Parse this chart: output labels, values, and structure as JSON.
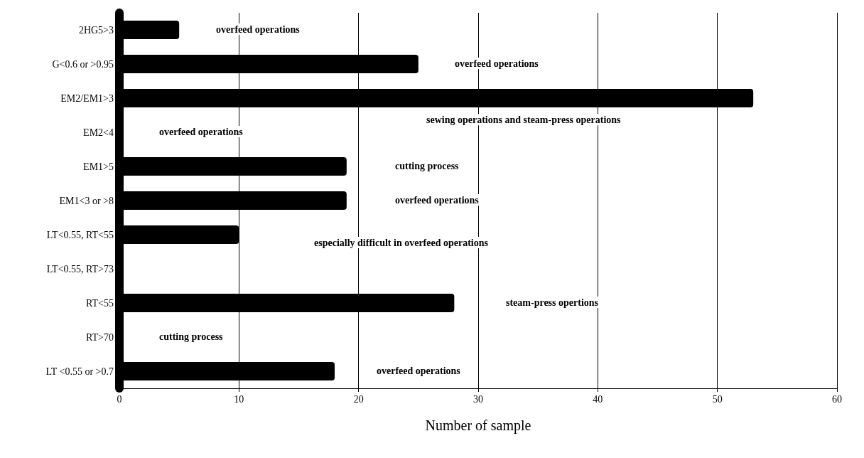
{
  "chart_data": {
    "type": "bar",
    "orientation": "horizontal",
    "xlabel": "Number of sample",
    "categories": [
      "2HG5>3",
      "G<0.6 or >0.95",
      "EM2/EM1>3",
      "EM2<4",
      "EM1>5",
      "EM1<3 or >8",
      "LT<0.55, RT<55",
      "LT<0.55, RT>73",
      "RT<55",
      "RT>70",
      "LT <0.55 or >0.7"
    ],
    "values": [
      5,
      25,
      53,
      null,
      19,
      19,
      10,
      null,
      28,
      null,
      18
    ],
    "color": "#000000",
    "xlim": [
      0,
      60
    ],
    "xticks": [
      0,
      10,
      20,
      30,
      40,
      50,
      60
    ],
    "grid": "x",
    "annotations": [
      "overfeed operations",
      "overfeed operations",
      "sewing operations and steam-press operations",
      "overfeed operations",
      "cutting process",
      "overfeed operations",
      "especially difficult in overfeed operations",
      "steam-press opertions",
      "cutting process",
      "overfeed operations"
    ]
  }
}
